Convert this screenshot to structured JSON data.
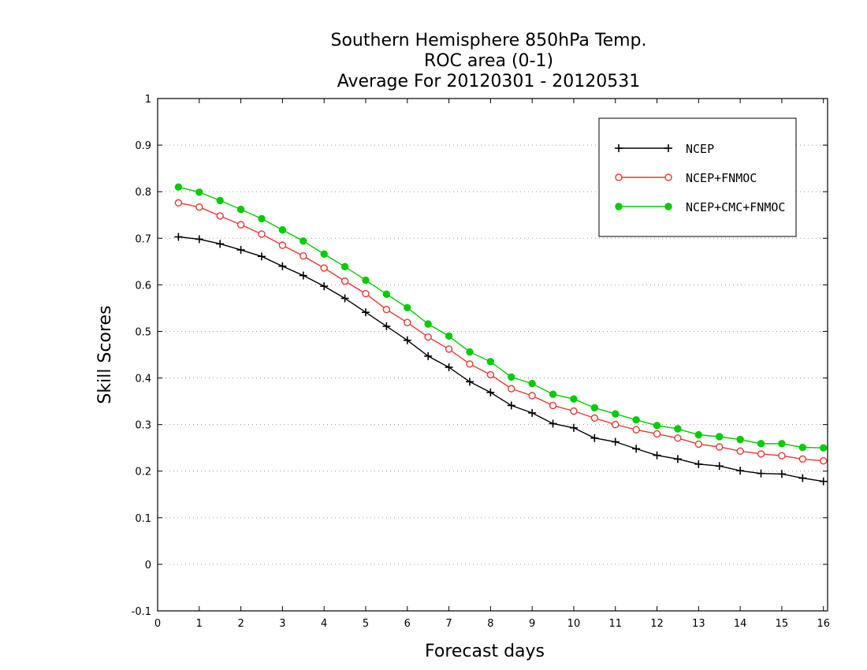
{
  "chart_data": {
    "type": "line",
    "title": [
      "Southern Hemisphere 850hPa Temp.",
      "ROC area (0-1)",
      "Average For 20120301 - 20120531"
    ],
    "xlabel": "Forecast days",
    "ylabel": "Skill Scores",
    "xlim": [
      0,
      16.1
    ],
    "ylim": [
      -0.1,
      1
    ],
    "x_ticks": [
      "0",
      "1",
      "2",
      "3",
      "4",
      "5",
      "6",
      "7",
      "8",
      "9",
      "10",
      "11",
      "12",
      "13",
      "14",
      "15",
      "16"
    ],
    "y_ticks": [
      "-0.1",
      "0",
      "0.1",
      "0.2",
      "0.3",
      "0.4",
      "0.5",
      "0.6",
      "0.7",
      "0.8",
      "0.9",
      "1"
    ],
    "grid": "horizontal dotted",
    "legend_position": "top-right",
    "x": [
      0.5,
      1,
      1.5,
      2,
      2.5,
      3,
      3.5,
      4,
      4.5,
      5,
      5.5,
      6,
      6.5,
      7,
      7.5,
      8,
      8.5,
      9,
      9.5,
      10,
      10.5,
      11,
      11.5,
      12,
      12.5,
      13,
      13.5,
      14,
      14.5,
      15,
      15.5,
      16
    ],
    "series": [
      {
        "name": "NCEP",
        "color": "#000000",
        "marker": "plus",
        "values": [
          0.703,
          0.698,
          0.688,
          0.675,
          0.661,
          0.64,
          0.62,
          0.597,
          0.571,
          0.541,
          0.511,
          0.481,
          0.447,
          0.423,
          0.392,
          0.369,
          0.341,
          0.325,
          0.302,
          0.293,
          0.271,
          0.263,
          0.248,
          0.234,
          0.226,
          0.215,
          0.211,
          0.201,
          0.195,
          0.194,
          0.185,
          0.178
        ]
      },
      {
        "name": "NCEP+FNMOC",
        "color": "#e53935",
        "marker": "open-circle",
        "values": [
          0.776,
          0.767,
          0.748,
          0.729,
          0.709,
          0.685,
          0.662,
          0.636,
          0.608,
          0.581,
          0.547,
          0.519,
          0.488,
          0.462,
          0.43,
          0.407,
          0.377,
          0.362,
          0.341,
          0.329,
          0.314,
          0.3,
          0.289,
          0.28,
          0.271,
          0.258,
          0.252,
          0.243,
          0.237,
          0.233,
          0.226,
          0.222
        ]
      },
      {
        "name": "NCEP+CMC+FNMOC",
        "color": "#00cc00",
        "marker": "filled-circle",
        "values": [
          0.81,
          0.799,
          0.781,
          0.762,
          0.742,
          0.718,
          0.694,
          0.666,
          0.639,
          0.61,
          0.58,
          0.551,
          0.516,
          0.49,
          0.456,
          0.435,
          0.402,
          0.388,
          0.365,
          0.355,
          0.336,
          0.323,
          0.31,
          0.298,
          0.291,
          0.278,
          0.274,
          0.268,
          0.259,
          0.259,
          0.251,
          0.25
        ]
      }
    ]
  }
}
